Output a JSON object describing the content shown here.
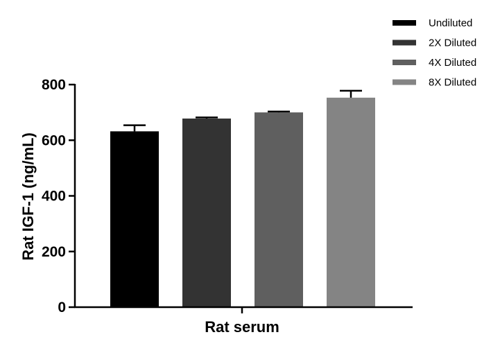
{
  "chart_data": {
    "type": "bar",
    "title": "",
    "xlabel": "Rat serum",
    "ylabel": "Rat IGF-1 (ng/mL)",
    "ylim": [
      0,
      800
    ],
    "yticks": [
      0,
      200,
      400,
      600,
      800
    ],
    "grid": false,
    "legend_position": "top-right",
    "categories": [
      "Rat serum"
    ],
    "series": [
      {
        "name": "Undiluted",
        "values": [
          632
        ],
        "error": [
          22
        ],
        "color": "#000000"
      },
      {
        "name": "2X Diluted",
        "values": [
          678
        ],
        "error": [
          4
        ],
        "color": "#333333"
      },
      {
        "name": "4X Diluted",
        "values": [
          700
        ],
        "error": [
          3
        ],
        "color": "#5f5f5f"
      },
      {
        "name": "8X Diluted",
        "values": [
          753
        ],
        "error": [
          25
        ],
        "color": "#848484"
      }
    ]
  }
}
